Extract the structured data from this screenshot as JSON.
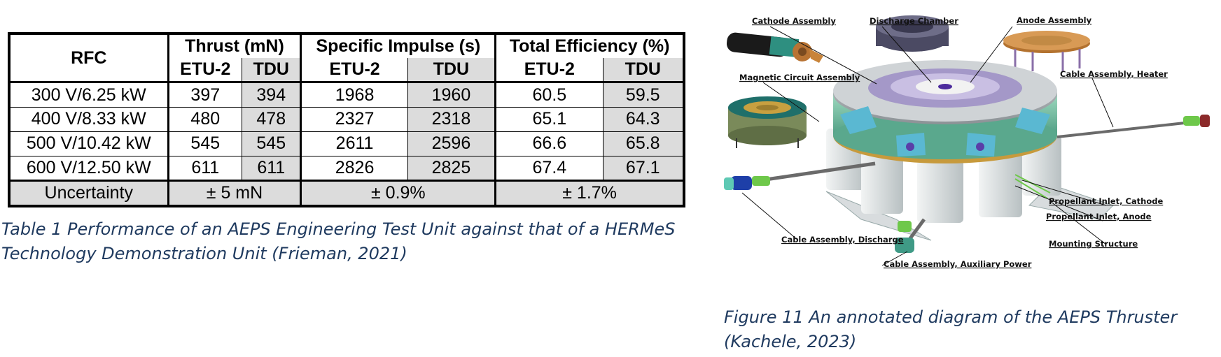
{
  "table": {
    "header_rfc": "RFC",
    "groups": [
      "Thrust (mN)",
      "Specific Impulse (s)",
      "Total Efficiency (%)"
    ],
    "sub": [
      "ETU-2",
      "TDU",
      "ETU-2",
      "TDU",
      "ETU-2",
      "TDU"
    ],
    "rows": [
      {
        "rfc": "300 V/6.25 kW",
        "values": [
          "397",
          "394",
          "1968",
          "1960",
          "60.5",
          "59.5"
        ]
      },
      {
        "rfc": "400 V/8.33 kW",
        "values": [
          "480",
          "478",
          "2327",
          "2318",
          "65.1",
          "64.3"
        ]
      },
      {
        "rfc": "500 V/10.42 kW",
        "values": [
          "545",
          "545",
          "2611",
          "2596",
          "66.6",
          "65.8"
        ]
      },
      {
        "rfc": "600 V/12.50 kW",
        "values": [
          "611",
          "611",
          "2826",
          "2825",
          "67.4",
          "67.1"
        ]
      }
    ],
    "uncertainty": {
      "label": "Uncertainty",
      "thrust": "± 5 mN",
      "isp": "± 0.9%",
      "eff": "± 1.7%"
    }
  },
  "table_caption": "Table 1 Performance of an AEPS Engineering Test Unit against that of a HERMeS Technology Demonstration Unit (Frieman, 2021)",
  "figure": {
    "labels": {
      "cathode": "Cathode Assembly",
      "discharge_chamber": "Discharge Chamber",
      "anode": "Anode Assembly",
      "magnetic": "Magnetic Circuit Assembly",
      "heater": "Cable Assembly, Heater",
      "prop_cathode": "Propellant Inlet, Cathode",
      "prop_anode": "Propellant Inlet, Anode",
      "discharge_cable": "Cable Assembly, Discharge",
      "mounting": "Mounting Structure",
      "aux": "Cable Assembly, Auxiliary Power"
    },
    "caption": "Figure 11 An annotated diagram of the AEPS Thruster (Kachele, 2023)"
  }
}
